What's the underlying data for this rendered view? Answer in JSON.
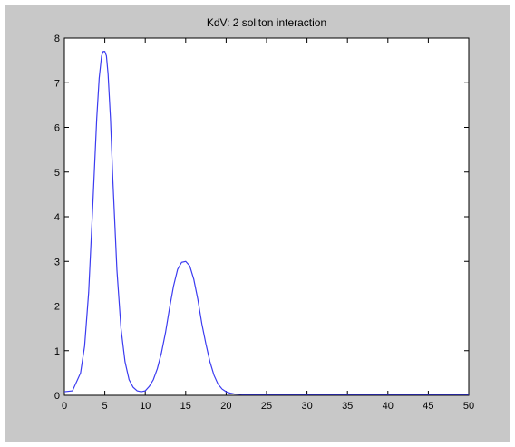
{
  "chart_data": {
    "type": "line",
    "title": "KdV: 2 soliton interaction",
    "xlabel": "",
    "ylabel": "",
    "xlim": [
      0,
      50
    ],
    "ylim": [
      0,
      8
    ],
    "x_ticks": [
      "0",
      "5",
      "10",
      "15",
      "20",
      "25",
      "30",
      "35",
      "40",
      "45",
      "50"
    ],
    "y_ticks": [
      "0",
      "1",
      "2",
      "3",
      "4",
      "5",
      "6",
      "7",
      "8"
    ],
    "grid": false,
    "series": [
      {
        "color": "#3b3bf0",
        "x": [
          0,
          1,
          2,
          2.5,
          3,
          3.5,
          4,
          4.3,
          4.6,
          4.8,
          5,
          5.2,
          5.4,
          5.7,
          6,
          6.5,
          7,
          7.5,
          8,
          8.5,
          9,
          9.5,
          10,
          10.5,
          11,
          11.5,
          12,
          12.5,
          13,
          13.5,
          14,
          14.5,
          15,
          15.5,
          16,
          16.5,
          17,
          17.5,
          18,
          18.5,
          19,
          19.5,
          20,
          20.5,
          21,
          22,
          23,
          25,
          30,
          35,
          40,
          45,
          50
        ],
        "values": [
          0.08,
          0.1,
          0.5,
          1.1,
          2.3,
          4.2,
          6.2,
          7.1,
          7.6,
          7.7,
          7.7,
          7.6,
          7.2,
          6.2,
          4.8,
          2.8,
          1.5,
          0.75,
          0.35,
          0.18,
          0.1,
          0.08,
          0.1,
          0.2,
          0.35,
          0.6,
          0.95,
          1.4,
          1.95,
          2.45,
          2.82,
          2.98,
          3.0,
          2.9,
          2.6,
          2.15,
          1.6,
          1.15,
          0.75,
          0.45,
          0.25,
          0.14,
          0.08,
          0.05,
          0.03,
          0.02,
          0.02,
          0.02,
          0.02,
          0.02,
          0.02,
          0.02,
          0.02
        ]
      }
    ]
  }
}
